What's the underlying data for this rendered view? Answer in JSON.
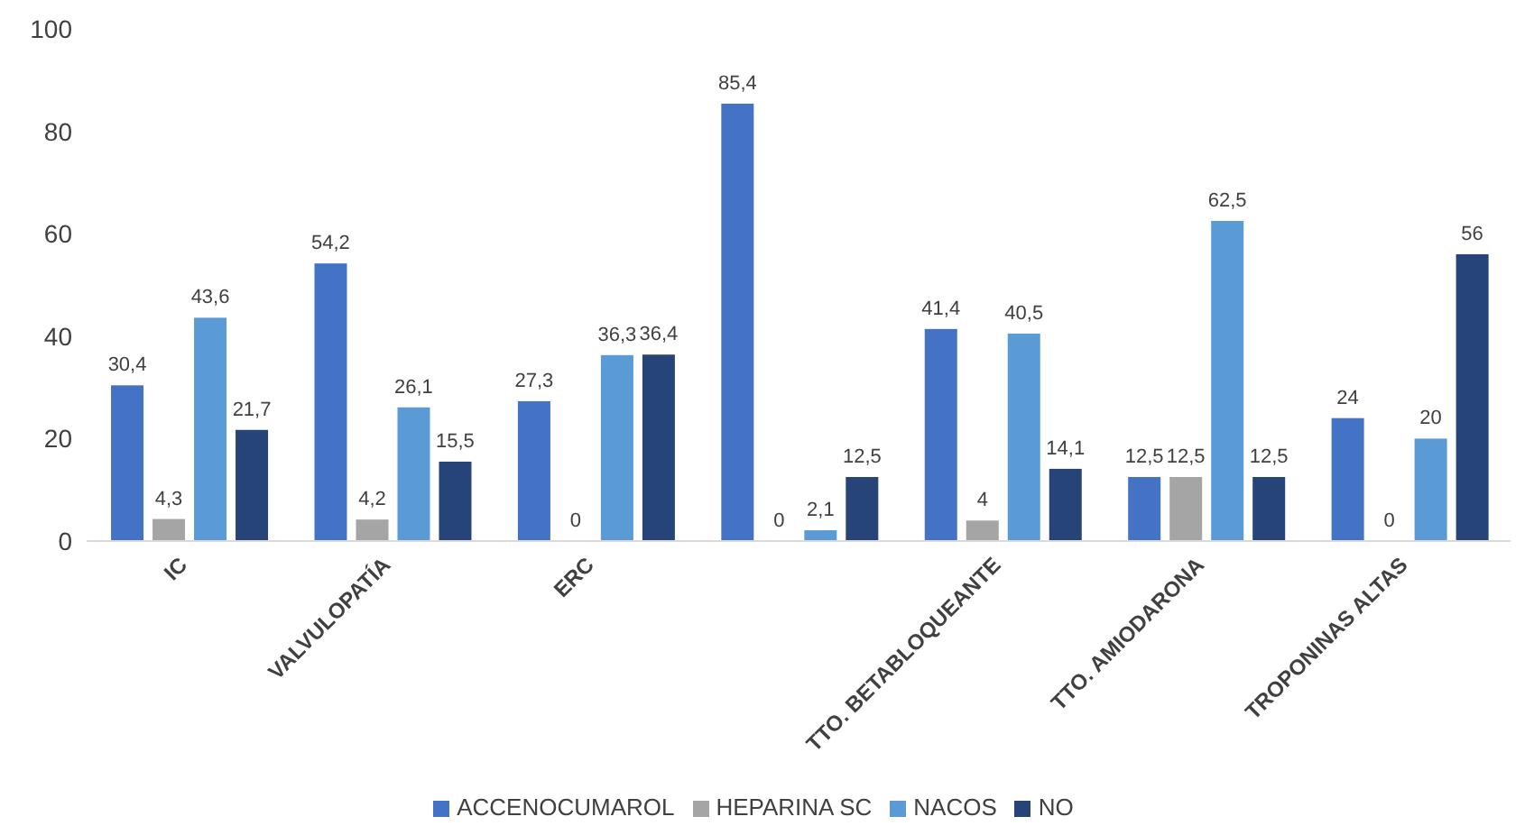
{
  "chart_data": {
    "type": "bar",
    "categories": [
      "IC",
      "VALVULOPATÍA",
      "ERC",
      null,
      "TTO. BETABLOQUEANTE",
      "TTO. AMIODARONA",
      "TROPONINAS ALTAS"
    ],
    "series": [
      {
        "name": "ACCENOCUMAROL",
        "color": "#4472c4",
        "values": [
          30.4,
          54.2,
          27.3,
          85.4,
          41.4,
          12.5,
          24
        ],
        "value_labels": [
          "30,4",
          "54,2",
          "27,3",
          "85,4",
          "41,4",
          "12,5",
          "24"
        ]
      },
      {
        "name": "HEPARINA SC",
        "color": "#a5a5a5",
        "values": [
          4.3,
          4.2,
          0,
          0,
          4,
          12.5,
          0
        ],
        "value_labels": [
          "4,3",
          "4,2",
          "0",
          "0",
          "4",
          "12,5",
          "0"
        ]
      },
      {
        "name": "NACOS",
        "color": "#5b9bd5",
        "values": [
          43.6,
          26.1,
          36.3,
          2.1,
          40.5,
          62.5,
          20
        ],
        "value_labels": [
          "43,6",
          "26,1",
          "36,3",
          "2,1",
          "40,5",
          "62,5",
          "20"
        ]
      },
      {
        "name": "NO",
        "color": "#264478",
        "values": [
          21.7,
          15.5,
          36.4,
          12.5,
          14.1,
          12.5,
          56
        ],
        "value_labels": [
          "21,7",
          "15,5",
          "36,4",
          "12,5",
          "14,1",
          "12,5",
          "56"
        ]
      }
    ],
    "ylim": [
      0,
      100
    ],
    "yticks": [
      0,
      20,
      40,
      60,
      80,
      100
    ],
    "grid": false,
    "legend": "bottom"
  }
}
